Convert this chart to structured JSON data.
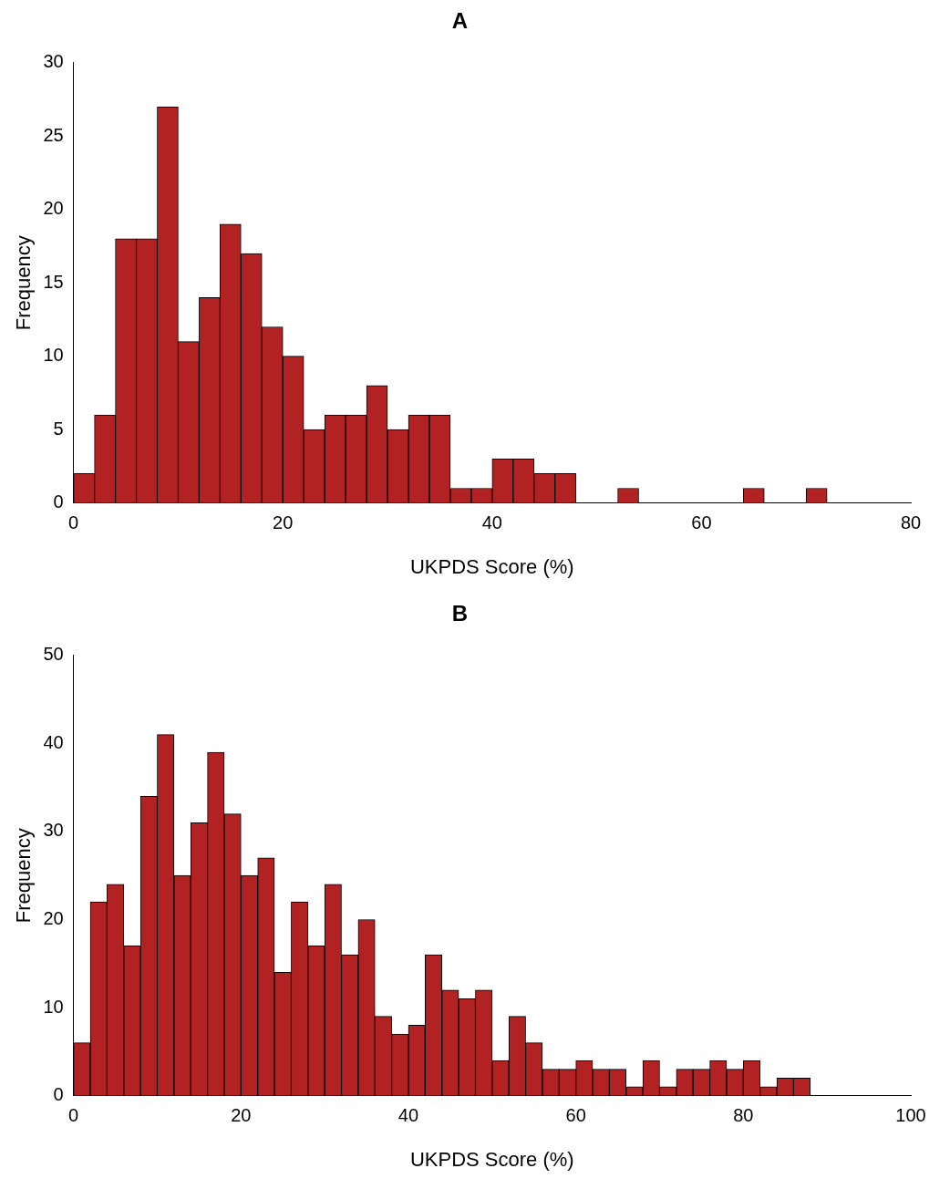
{
  "chart_data": [
    {
      "type": "histogram",
      "title": "A",
      "xlabel": "UKPDS Score (%)",
      "ylabel": "Frequency",
      "color": "#b22222",
      "bins": [
        0,
        2,
        4,
        6,
        8,
        10,
        12,
        14,
        16,
        18,
        20,
        22,
        24,
        26,
        28,
        30,
        32,
        34,
        36,
        38,
        40,
        42,
        44,
        46,
        48,
        50,
        52,
        54,
        56,
        58,
        60,
        62,
        64,
        66,
        68,
        70,
        72
      ],
      "values": [
        2,
        6,
        18,
        18,
        27,
        11,
        14,
        19,
        17,
        12,
        10,
        5,
        6,
        6,
        8,
        5,
        6,
        6,
        1,
        1,
        3,
        3,
        2,
        2,
        0,
        0,
        1,
        0,
        0,
        0,
        0,
        0,
        1,
        0,
        0,
        1
      ],
      "xlim": [
        0,
        80
      ],
      "xticks": [
        0,
        20,
        40,
        60,
        80
      ],
      "ylim": [
        0,
        30
      ],
      "yticks": [
        0,
        5,
        10,
        15,
        20,
        25,
        30
      ],
      "grid": false,
      "legend": false
    },
    {
      "type": "histogram",
      "title": "B",
      "xlabel": "UKPDS Score (%)",
      "ylabel": "Frequency",
      "color": "#b22222",
      "bins": [
        0,
        2,
        4,
        6,
        8,
        10,
        12,
        14,
        16,
        18,
        20,
        22,
        24,
        26,
        28,
        30,
        32,
        34,
        36,
        38,
        40,
        42,
        44,
        46,
        48,
        50,
        52,
        54,
        56,
        58,
        60,
        62,
        64,
        66,
        68,
        70,
        72,
        74,
        76,
        78,
        80,
        82,
        84,
        86,
        88
      ],
      "values": [
        6,
        22,
        24,
        17,
        34,
        41,
        25,
        31,
        39,
        32,
        25,
        27,
        14,
        22,
        17,
        24,
        16,
        20,
        9,
        7,
        8,
        16,
        12,
        11,
        12,
        4,
        9,
        6,
        3,
        3,
        4,
        3,
        3,
        1,
        4,
        1,
        3,
        3,
        4,
        3,
        4,
        1,
        2,
        2
      ],
      "xlim": [
        0,
        100
      ],
      "xticks": [
        0,
        20,
        40,
        60,
        80,
        100
      ],
      "ylim": [
        0,
        50
      ],
      "yticks": [
        0,
        10,
        20,
        30,
        40,
        50
      ],
      "grid": false,
      "legend": false
    }
  ]
}
